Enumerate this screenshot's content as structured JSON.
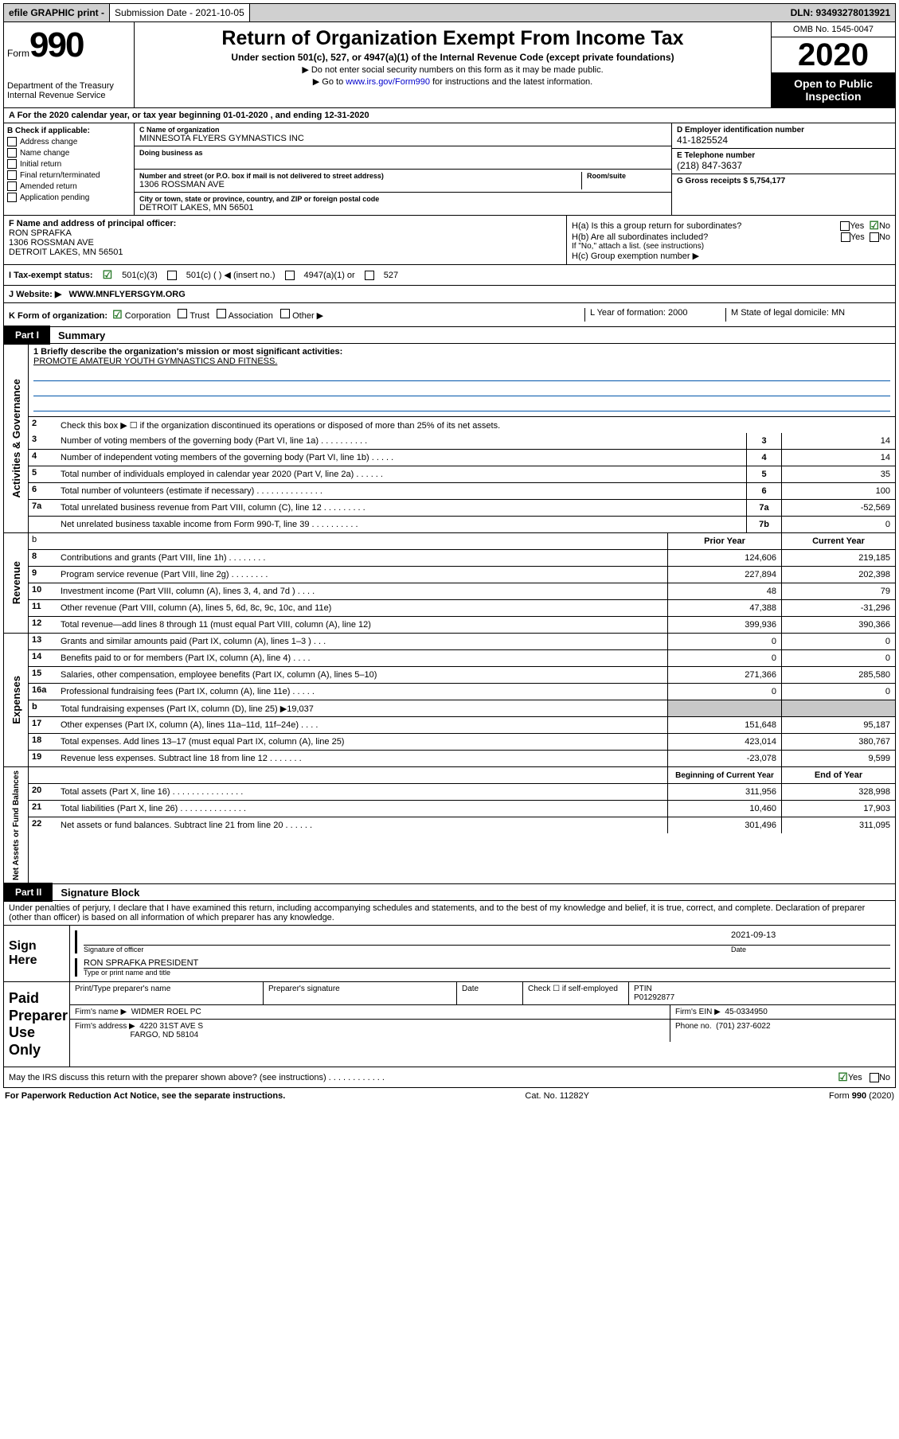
{
  "topbar": {
    "efile": "efile GRAPHIC print -",
    "submission_label": "Submission Date - 2021-10-05",
    "dln_label": "DLN: 93493278013921"
  },
  "header": {
    "form_word": "Form",
    "form_num": "990",
    "dept": "Department of the Treasury\nInternal Revenue Service",
    "title": "Return of Organization Exempt From Income Tax",
    "subtitle": "Under section 501(c), 527, or 4947(a)(1) of the Internal Revenue Code (except private foundations)",
    "note1": "▶ Do not enter social security numbers on this form as it may be made public.",
    "note2_pre": "▶ Go to ",
    "note2_link": "www.irs.gov/Form990",
    "note2_post": " for instructions and the latest information.",
    "omb": "OMB No. 1545-0047",
    "year": "2020",
    "open": "Open to Public Inspection"
  },
  "period": "A For the 2020 calendar year, or tax year beginning 01-01-2020   , and ending 12-31-2020",
  "colB": {
    "label": "B Check if applicable:",
    "items": [
      "Address change",
      "Name change",
      "Initial return",
      "Final return/terminated",
      "Amended return",
      "Application pending"
    ]
  },
  "colC": {
    "name_label": "C Name of organization",
    "name": "MINNESOTA FLYERS GYMNASTICS INC",
    "dba_label": "Doing business as",
    "addr_label": "Number and street (or P.O. box if mail is not delivered to street address)",
    "room_label": "Room/suite",
    "addr": "1306 ROSSMAN AVE",
    "city_label": "City or town, state or province, country, and ZIP or foreign postal code",
    "city": "DETROIT LAKES, MN  56501"
  },
  "colD": {
    "ein_label": "D Employer identification number",
    "ein": "41-1825524",
    "tel_label": "E Telephone number",
    "tel": "(218) 847-3637",
    "gross_label": "G Gross receipts $ 5,754,177"
  },
  "rowF": {
    "label": "F  Name and address of principal officer:",
    "name": "RON SPRAFKA",
    "addr1": "1306 ROSSMAN AVE",
    "addr2": "DETROIT LAKES, MN  56501"
  },
  "rowH": {
    "ha": "H(a)  Is this a group return for subordinates?",
    "hb": "H(b)  Are all subordinates included?",
    "hb_note": "If \"No,\" attach a list. (see instructions)",
    "hc": "H(c)  Group exemption number ▶"
  },
  "rowI": {
    "label": "I   Tax-exempt status:",
    "opts": [
      "501(c)(3)",
      "501(c) (   ) ◀ (insert no.)",
      "4947(a)(1) or",
      "527"
    ]
  },
  "rowJ": {
    "label": "J   Website: ▶",
    "val": "WWW.MNFLYERSGYM.ORG"
  },
  "rowK": {
    "label": "K Form of organization:",
    "opts": [
      "Corporation",
      "Trust",
      "Association",
      "Other ▶"
    ]
  },
  "rowL": {
    "label": "L Year of formation: 2000"
  },
  "rowM": {
    "label": "M State of legal domicile: MN"
  },
  "part1": {
    "tab": "Part I",
    "title": "Summary"
  },
  "mission": {
    "q": "1   Briefly describe the organization's mission or most significant activities:",
    "text": "PROMOTE AMATEUR YOUTH GYMNASTICS AND FITNESS."
  },
  "gov_lines": [
    {
      "n": "2",
      "d": "Check this box ▶ ☐  if the organization discontinued its operations or disposed of more than 25% of its net assets.",
      "ref": "",
      "v": ""
    },
    {
      "n": "3",
      "d": "Number of voting members of the governing body (Part VI, line 1a)  .  .  .  .  .  .  .  .  .  .",
      "ref": "3",
      "v": "14"
    },
    {
      "n": "4",
      "d": "Number of independent voting members of the governing body (Part VI, line 1b)  .  .  .  .  .",
      "ref": "4",
      "v": "14"
    },
    {
      "n": "5",
      "d": "Total number of individuals employed in calendar year 2020 (Part V, line 2a)  .  .  .  .  .  .",
      "ref": "5",
      "v": "35"
    },
    {
      "n": "6",
      "d": "Total number of volunteers (estimate if necessary)  .  .  .  .  .  .  .  .  .  .  .  .  .  .",
      "ref": "6",
      "v": "100"
    },
    {
      "n": "7a",
      "d": "Total unrelated business revenue from Part VIII, column (C), line 12  .  .  .  .  .  .  .  .  .",
      "ref": "7a",
      "v": "-52,569"
    },
    {
      "n": "",
      "d": "Net unrelated business taxable income from Form 990-T, line 39  .  .  .  .  .  .  .  .  .  .",
      "ref": "7b",
      "v": "0"
    }
  ],
  "rev_header": {
    "prior": "Prior Year",
    "curr": "Current Year"
  },
  "rev_lines": [
    {
      "n": "8",
      "d": "Contributions and grants (Part VIII, line 1h)  .  .  .  .  .  .  .  .",
      "p": "124,606",
      "c": "219,185"
    },
    {
      "n": "9",
      "d": "Program service revenue (Part VIII, line 2g)  .  .  .  .  .  .  .  .",
      "p": "227,894",
      "c": "202,398"
    },
    {
      "n": "10",
      "d": "Investment income (Part VIII, column (A), lines 3, 4, and 7d )  .  .  .  .",
      "p": "48",
      "c": "79"
    },
    {
      "n": "11",
      "d": "Other revenue (Part VIII, column (A), lines 5, 6d, 8c, 9c, 10c, and 11e)",
      "p": "47,388",
      "c": "-31,296"
    },
    {
      "n": "12",
      "d": "Total revenue—add lines 8 through 11 (must equal Part VIII, column (A), line 12)",
      "p": "399,936",
      "c": "390,366"
    }
  ],
  "exp_lines": [
    {
      "n": "13",
      "d": "Grants and similar amounts paid (Part IX, column (A), lines 1–3 )  .  .  .",
      "p": "0",
      "c": "0"
    },
    {
      "n": "14",
      "d": "Benefits paid to or for members (Part IX, column (A), line 4)  .  .  .  .",
      "p": "0",
      "c": "0"
    },
    {
      "n": "15",
      "d": "Salaries, other compensation, employee benefits (Part IX, column (A), lines 5–10)",
      "p": "271,366",
      "c": "285,580"
    },
    {
      "n": "16a",
      "d": "Professional fundraising fees (Part IX, column (A), line 11e)  .  .  .  .  .",
      "p": "0",
      "c": "0"
    },
    {
      "n": "b",
      "d": "Total fundraising expenses (Part IX, column (D), line 25) ▶19,037",
      "p": "",
      "c": "",
      "shaded": true
    },
    {
      "n": "17",
      "d": "Other expenses (Part IX, column (A), lines 11a–11d, 11f–24e)  .  .  .  .",
      "p": "151,648",
      "c": "95,187"
    },
    {
      "n": "18",
      "d": "Total expenses. Add lines 13–17 (must equal Part IX, column (A), line 25)",
      "p": "423,014",
      "c": "380,767"
    },
    {
      "n": "19",
      "d": "Revenue less expenses. Subtract line 18 from line 12  .  .  .  .  .  .  .",
      "p": "-23,078",
      "c": "9,599"
    }
  ],
  "na_header": {
    "prior": "Beginning of Current Year",
    "curr": "End of Year"
  },
  "na_lines": [
    {
      "n": "20",
      "d": "Total assets (Part X, line 16)  .  .  .  .  .  .  .  .  .  .  .  .  .  .  .",
      "p": "311,956",
      "c": "328,998"
    },
    {
      "n": "21",
      "d": "Total liabilities (Part X, line 26)  .  .  .  .  .  .  .  .  .  .  .  .  .  .",
      "p": "10,460",
      "c": "17,903"
    },
    {
      "n": "22",
      "d": "Net assets or fund balances. Subtract line 21 from line 20  .  .  .  .  .  .",
      "p": "301,496",
      "c": "311,095"
    }
  ],
  "part2": {
    "tab": "Part II",
    "title": "Signature Block"
  },
  "perjury": "Under penalties of perjury, I declare that I have examined this return, including accompanying schedules and statements, and to the best of my knowledge and belief, it is true, correct, and complete. Declaration of preparer (other than officer) is based on all information of which preparer has any knowledge.",
  "sign": {
    "label": "Sign Here",
    "sig_lbl": "Signature of officer",
    "date_lbl": "Date",
    "date": "2021-09-13",
    "name": "RON SPRAFKA PRESIDENT",
    "name_lbl": "Type or print name and title"
  },
  "prep": {
    "label": "Paid Preparer Use Only",
    "h1": "Print/Type preparer's name",
    "h2": "Preparer's signature",
    "h3": "Date",
    "h4": "Check ☐ if self-employed",
    "h5_lbl": "PTIN",
    "h5": "P01292877",
    "firm_lbl": "Firm's name    ▶",
    "firm": "WIDMER ROEL PC",
    "ein_lbl": "Firm's EIN ▶",
    "ein": "45-0334950",
    "addr_lbl": "Firm's address ▶",
    "addr1": "4220 31ST AVE S",
    "addr2": "FARGO, ND  58104",
    "phone_lbl": "Phone no.",
    "phone": "(701) 237-6022"
  },
  "may": "May the IRS discuss this return with the preparer shown above? (see instructions)  .  .  .  .  .  .  .  .  .  .  .  .",
  "footer": {
    "left": "For Paperwork Reduction Act Notice, see the separate instructions.",
    "mid": "Cat. No. 11282Y",
    "right": "Form 990 (2020)"
  },
  "yesno": {
    "yes": "Yes",
    "no": "No"
  },
  "sidebars": {
    "gov": "Activities & Governance",
    "rev": "Revenue",
    "exp": "Expenses",
    "na": "Net Assets or Fund Balances"
  }
}
